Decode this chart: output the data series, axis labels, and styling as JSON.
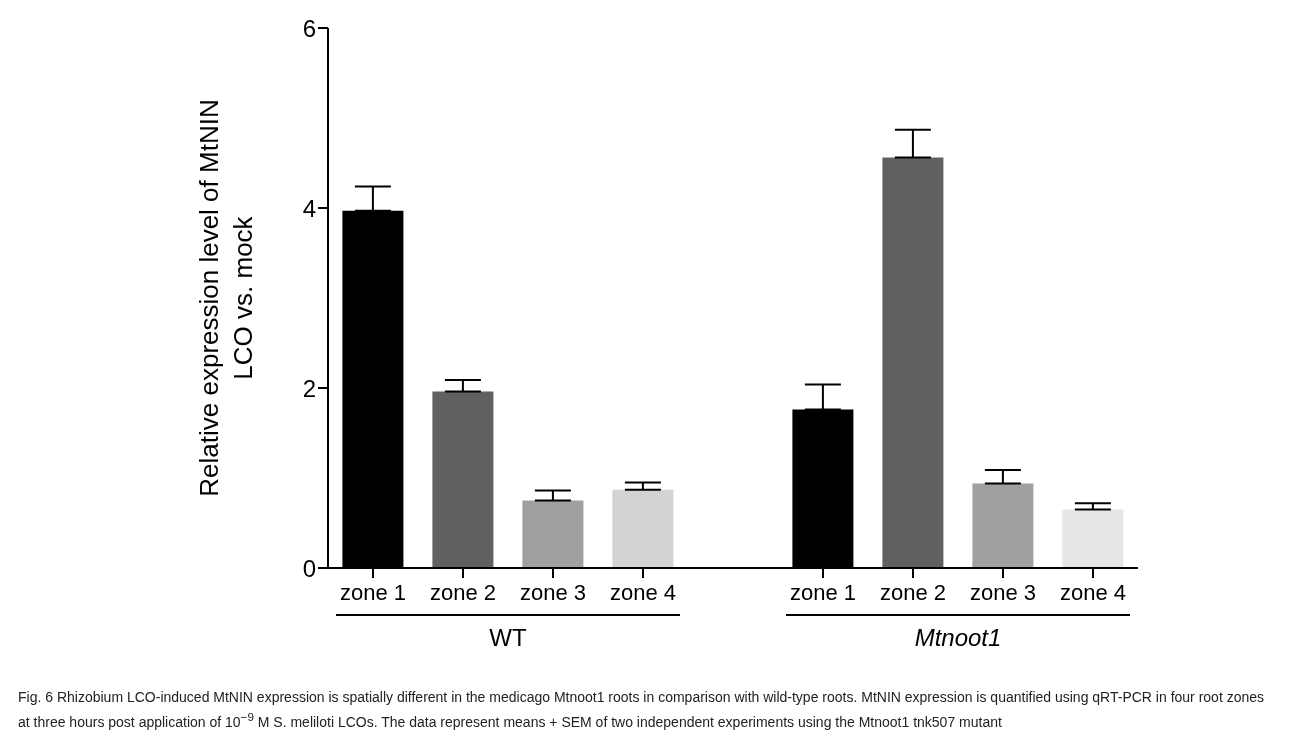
{
  "chart_data": {
    "type": "bar",
    "ylabel": "Relative expression level of MtNIN LCO vs. mock",
    "categories": [
      "zone 1",
      "zone 2",
      "zone 3",
      "zone 4",
      null,
      "zone 1",
      "zone 2",
      "zone 3",
      "zone 4"
    ],
    "values": [
      3.97,
      1.96,
      0.75,
      0.87,
      null,
      1.76,
      4.56,
      0.94,
      0.65
    ],
    "errors": [
      [
        3.97,
        4.24
      ],
      [
        1.96,
        2.09
      ],
      [
        0.75,
        0.86
      ],
      [
        0.87,
        0.95
      ],
      null,
      [
        1.76,
        2.04
      ],
      [
        4.56,
        4.87
      ],
      [
        0.94,
        1.09
      ],
      [
        0.65,
        0.72
      ]
    ],
    "colors": [
      "#000000",
      "#606060",
      "#a0a0a0",
      "#d3d3d3",
      "#ffffff",
      "#000000",
      "#606060",
      "#a0a0a0",
      "#e6e6e6"
    ],
    "ylim": [
      0,
      6
    ],
    "yticks": [
      0,
      2,
      4,
      6
    ],
    "grid": false,
    "legend": false,
    "annotations": [
      "WT",
      "Mtnoot1",
      "Fig. 6 Rhizobium LCO-induced MtNIN expression is spatially different in the medicago Mtnoot1 roots in comparison with wild-type roots. MtNIN expression is quantified using qRT-PCR in four root zones at three hours post application of 10$^{−9}$ M S. meliloti LCOs. The data represent means + SEM of two independent experiments using the Mtnoot1 tnk507 mutant"
    ]
  }
}
